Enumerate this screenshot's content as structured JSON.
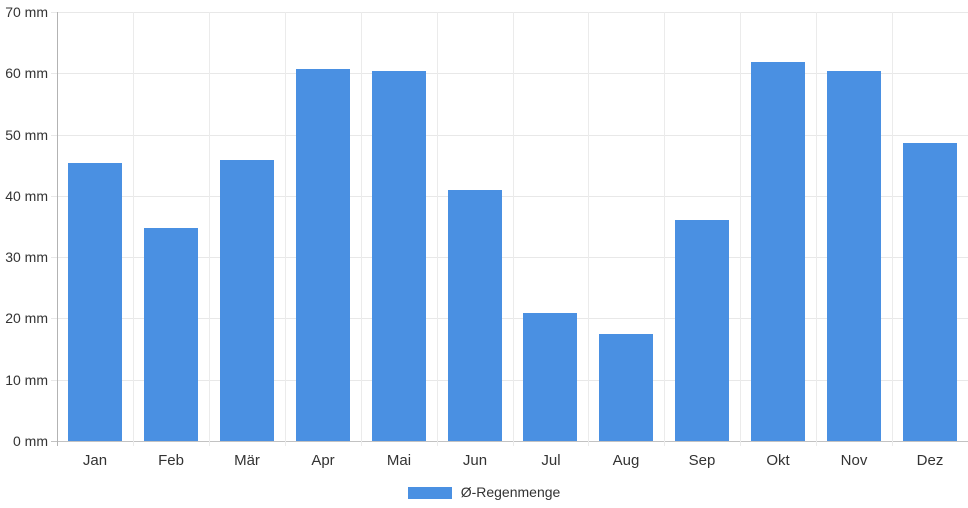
{
  "chart_data": {
    "type": "bar",
    "title": "",
    "xlabel": "",
    "ylabel": "",
    "unit": "mm",
    "categories": [
      "Jan",
      "Feb",
      "Mär",
      "Apr",
      "Mai",
      "Jun",
      "Jul",
      "Aug",
      "Sep",
      "Okt",
      "Nov",
      "Dez"
    ],
    "series": [
      {
        "name": "Ø-Regenmenge",
        "values": [
          45.4,
          34.8,
          45.8,
          60.7,
          60.4,
          41.0,
          20.9,
          17.5,
          36.1,
          61.8,
          60.3,
          48.6
        ]
      }
    ],
    "y_tick_labels": [
      "0 mm",
      "10 mm",
      "20 mm",
      "30 mm",
      "40 mm",
      "50 mm",
      "60 mm",
      "70 mm"
    ],
    "ylim": [
      0,
      70
    ],
    "ytick_step": 10,
    "grid": true,
    "legend_position": "bottom-center"
  },
  "colors": {
    "bar": "#4a90e2",
    "grid": "#e8e8e8",
    "vgrid": "#ebebeb",
    "axis": "#b3b3b3",
    "baseline": "#c2c2c2",
    "text": "#333333",
    "background": "#ffffff"
  }
}
